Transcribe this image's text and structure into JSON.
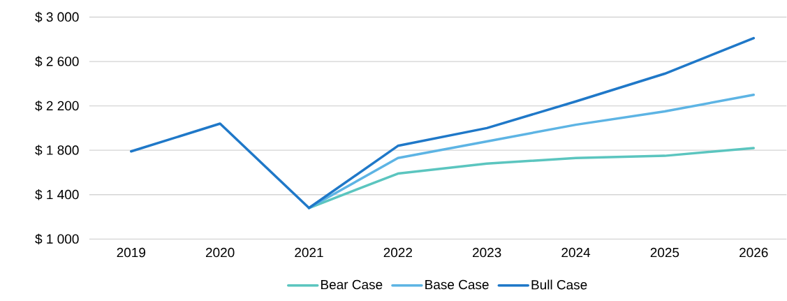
{
  "chart_data": {
    "type": "line",
    "categories": [
      "2019",
      "2020",
      "2021",
      "2022",
      "2023",
      "2024",
      "2025",
      "2026"
    ],
    "series": [
      {
        "name": "Bear Case",
        "color": "#5bc5bf",
        "values": [
          null,
          null,
          1280,
          1590,
          1680,
          1730,
          1750,
          1820
        ]
      },
      {
        "name": "Base Case",
        "color": "#5db4e4",
        "values": [
          null,
          null,
          1280,
          1730,
          1880,
          2030,
          2150,
          2300
        ]
      },
      {
        "name": "Bull Case",
        "color": "#1f78c8",
        "values": [
          1790,
          2040,
          1280,
          1840,
          2000,
          2240,
          2490,
          2810
        ]
      }
    ],
    "ylim": [
      1000,
      3000
    ],
    "yticks": [
      {
        "value": 1000,
        "label": "$ 1 000"
      },
      {
        "value": 1400,
        "label": "$ 1 400"
      },
      {
        "value": 1800,
        "label": "$ 1 800"
      },
      {
        "value": 2200,
        "label": "$ 2 200"
      },
      {
        "value": 2600,
        "label": "$ 2 600"
      },
      {
        "value": 3000,
        "label": "$ 3 000"
      }
    ],
    "grid": "y",
    "legend": "bottom"
  }
}
